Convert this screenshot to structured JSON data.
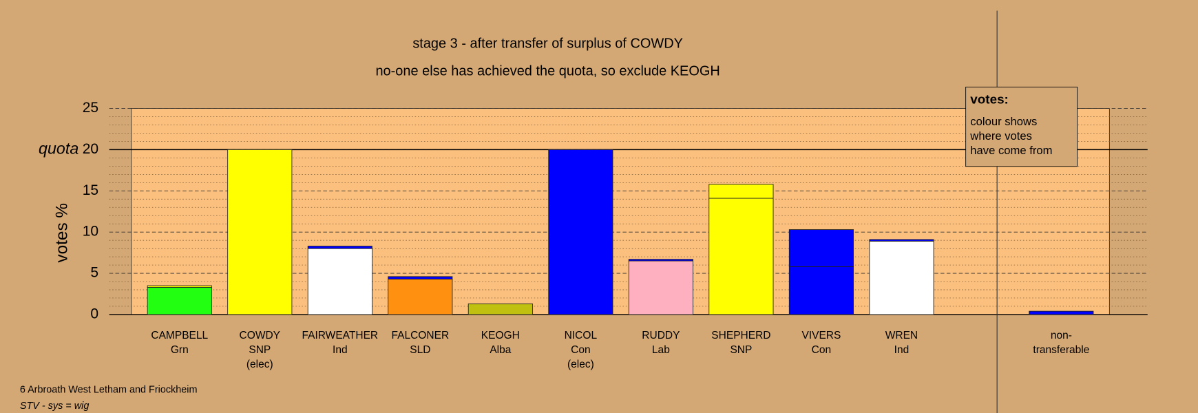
{
  "chart_data": {
    "type": "bar",
    "title": "stage 3 - after transfer of surplus of COWDY",
    "subtitle": "no-one else has achieved the quota, so exclude KEOGH",
    "y_label": "votes %",
    "quota": {
      "value": 20,
      "label": "quota"
    },
    "categories": [
      [
        "CAMPBELL",
        "Grn"
      ],
      [
        "COWDY",
        "SNP",
        "(elec)"
      ],
      [
        "FAIRWEATHER",
        "Ind"
      ],
      [
        "FALCONER",
        "SLD"
      ],
      [
        "KEOGH",
        "Alba"
      ],
      [
        "NICOL",
        "Con",
        "(elec)"
      ],
      [
        "RUDDY",
        "Lab"
      ],
      [
        "SHEPHERD",
        "SNP"
      ],
      [
        "VIVERS",
        "Con"
      ],
      [
        "WREN",
        "Ind"
      ],
      [
        "non-",
        "transferable"
      ]
    ],
    "series": [
      {
        "colors": [
          "#22ff11",
          "#ffff00",
          "#ffffff",
          "#ff9010",
          "#c0c010",
          "#0000ff",
          "#ffb0c0",
          "#ffff00",
          "#0000ff",
          "#ffffff",
          "#0000ff"
        ],
        "values": [
          3.3,
          20,
          8.0,
          4.3,
          1.3,
          20,
          6.5,
          14.1,
          5.8,
          8.9,
          0
        ]
      },
      {
        "color": "#0000ff",
        "values": [
          0,
          0,
          0.3,
          0.3,
          0,
          0,
          0.2,
          0,
          4.5,
          0.2,
          0.4
        ]
      },
      {
        "color": "#ffff00",
        "values": [
          0.2,
          0,
          0,
          0,
          0,
          0,
          0,
          1.7,
          0,
          0,
          0
        ]
      }
    ],
    "ylim": [
      0,
      25
    ],
    "yticks": [
      0,
      5,
      10,
      15,
      20,
      25
    ],
    "yticks_minor": [
      1,
      2,
      3,
      4,
      6,
      7,
      8,
      9,
      11,
      12,
      13,
      14,
      16,
      17,
      18,
      19,
      21,
      22,
      23,
      24
    ],
    "note": {
      "title": "votes:",
      "lines": [
        "colour shows",
        "where votes",
        "have come from"
      ]
    },
    "footer": [
      "6 Arbroath West Letham and Friockheim",
      "STV - sys = wig"
    ]
  }
}
